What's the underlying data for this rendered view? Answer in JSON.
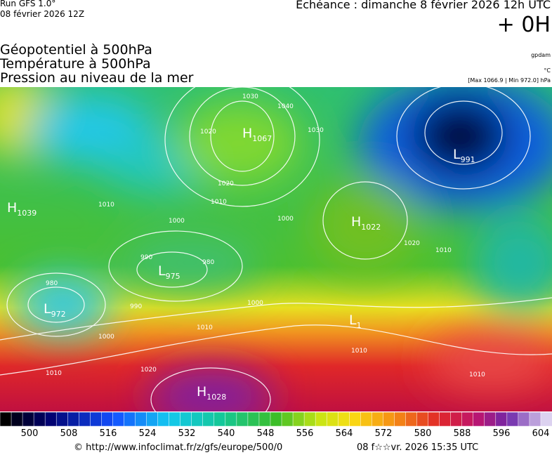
{
  "header": {
    "run": "Run GFS 1.0°",
    "date": "08 février 2026 12Z",
    "echeance": "Echéance : dimanche 8 février 2026 12h UTC",
    "offset": "+ 0H",
    "titles": [
      "Géopotentiel à 500hPa",
      "Température à 500hPa",
      "Pression au niveau de la mer"
    ],
    "units": [
      "gpdam",
      "°C",
      "[Max 1066.9 | Min 972.0] hPa"
    ]
  },
  "map": {
    "centers": [
      {
        "kind": "H",
        "value": "1067"
      },
      {
        "kind": "H",
        "value": "1039"
      },
      {
        "kind": "L",
        "value": "991"
      },
      {
        "kind": "H",
        "value": "1022"
      },
      {
        "kind": "L",
        "value": "975"
      },
      {
        "kind": "L",
        "value": "972"
      },
      {
        "kind": "H",
        "value": "1028"
      },
      {
        "kind": "L",
        "value": "1"
      }
    ],
    "isobar_labels": [
      "1030",
      "1040",
      "1020",
      "1020",
      "1030",
      "1010",
      "1010",
      "1000",
      "1000",
      "990",
      "980",
      "980",
      "990",
      "1000",
      "1010",
      "1010",
      "1020",
      "1020",
      "1010",
      "1010",
      "1000",
      "1010"
    ]
  },
  "colorbar": {
    "ticks": [
      "500",
      "508",
      "516",
      "524",
      "532",
      "540",
      "548",
      "556",
      "564",
      "572",
      "580",
      "588",
      "596",
      "604"
    ]
  },
  "footer": {
    "url": "© http://www.infoclimat.fr/z/gfs/europe/500/0",
    "timestamp": "08 f☆☆vr. 2026 15:35 UTC"
  }
}
